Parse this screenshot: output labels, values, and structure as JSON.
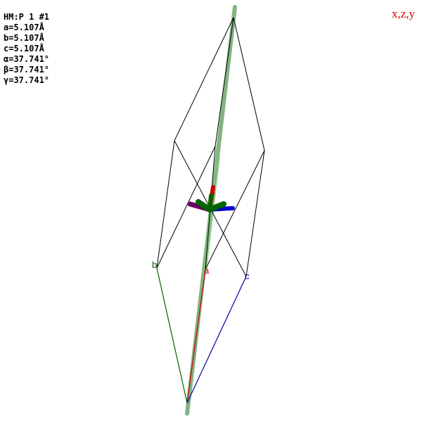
{
  "info": {
    "hm": "HM:P 1 #1",
    "a": "a=5.107Å",
    "b": "b=5.107Å",
    "c": "c=5.107Å",
    "alpha": "α=37.741°",
    "beta": "β=37.741°",
    "gamma": "γ=37.741°"
  },
  "symop": "x,z,y",
  "axes": {
    "a_label": "a",
    "b_label": "b",
    "c_label": "c"
  },
  "colors": {
    "a_axis": "#cc0000",
    "b_axis": "#006600",
    "c_axis": "#0000aa",
    "symop_text": "#e00000",
    "rotation_axis": "#5a9a5a",
    "arrow_purple": "#660066"
  }
}
